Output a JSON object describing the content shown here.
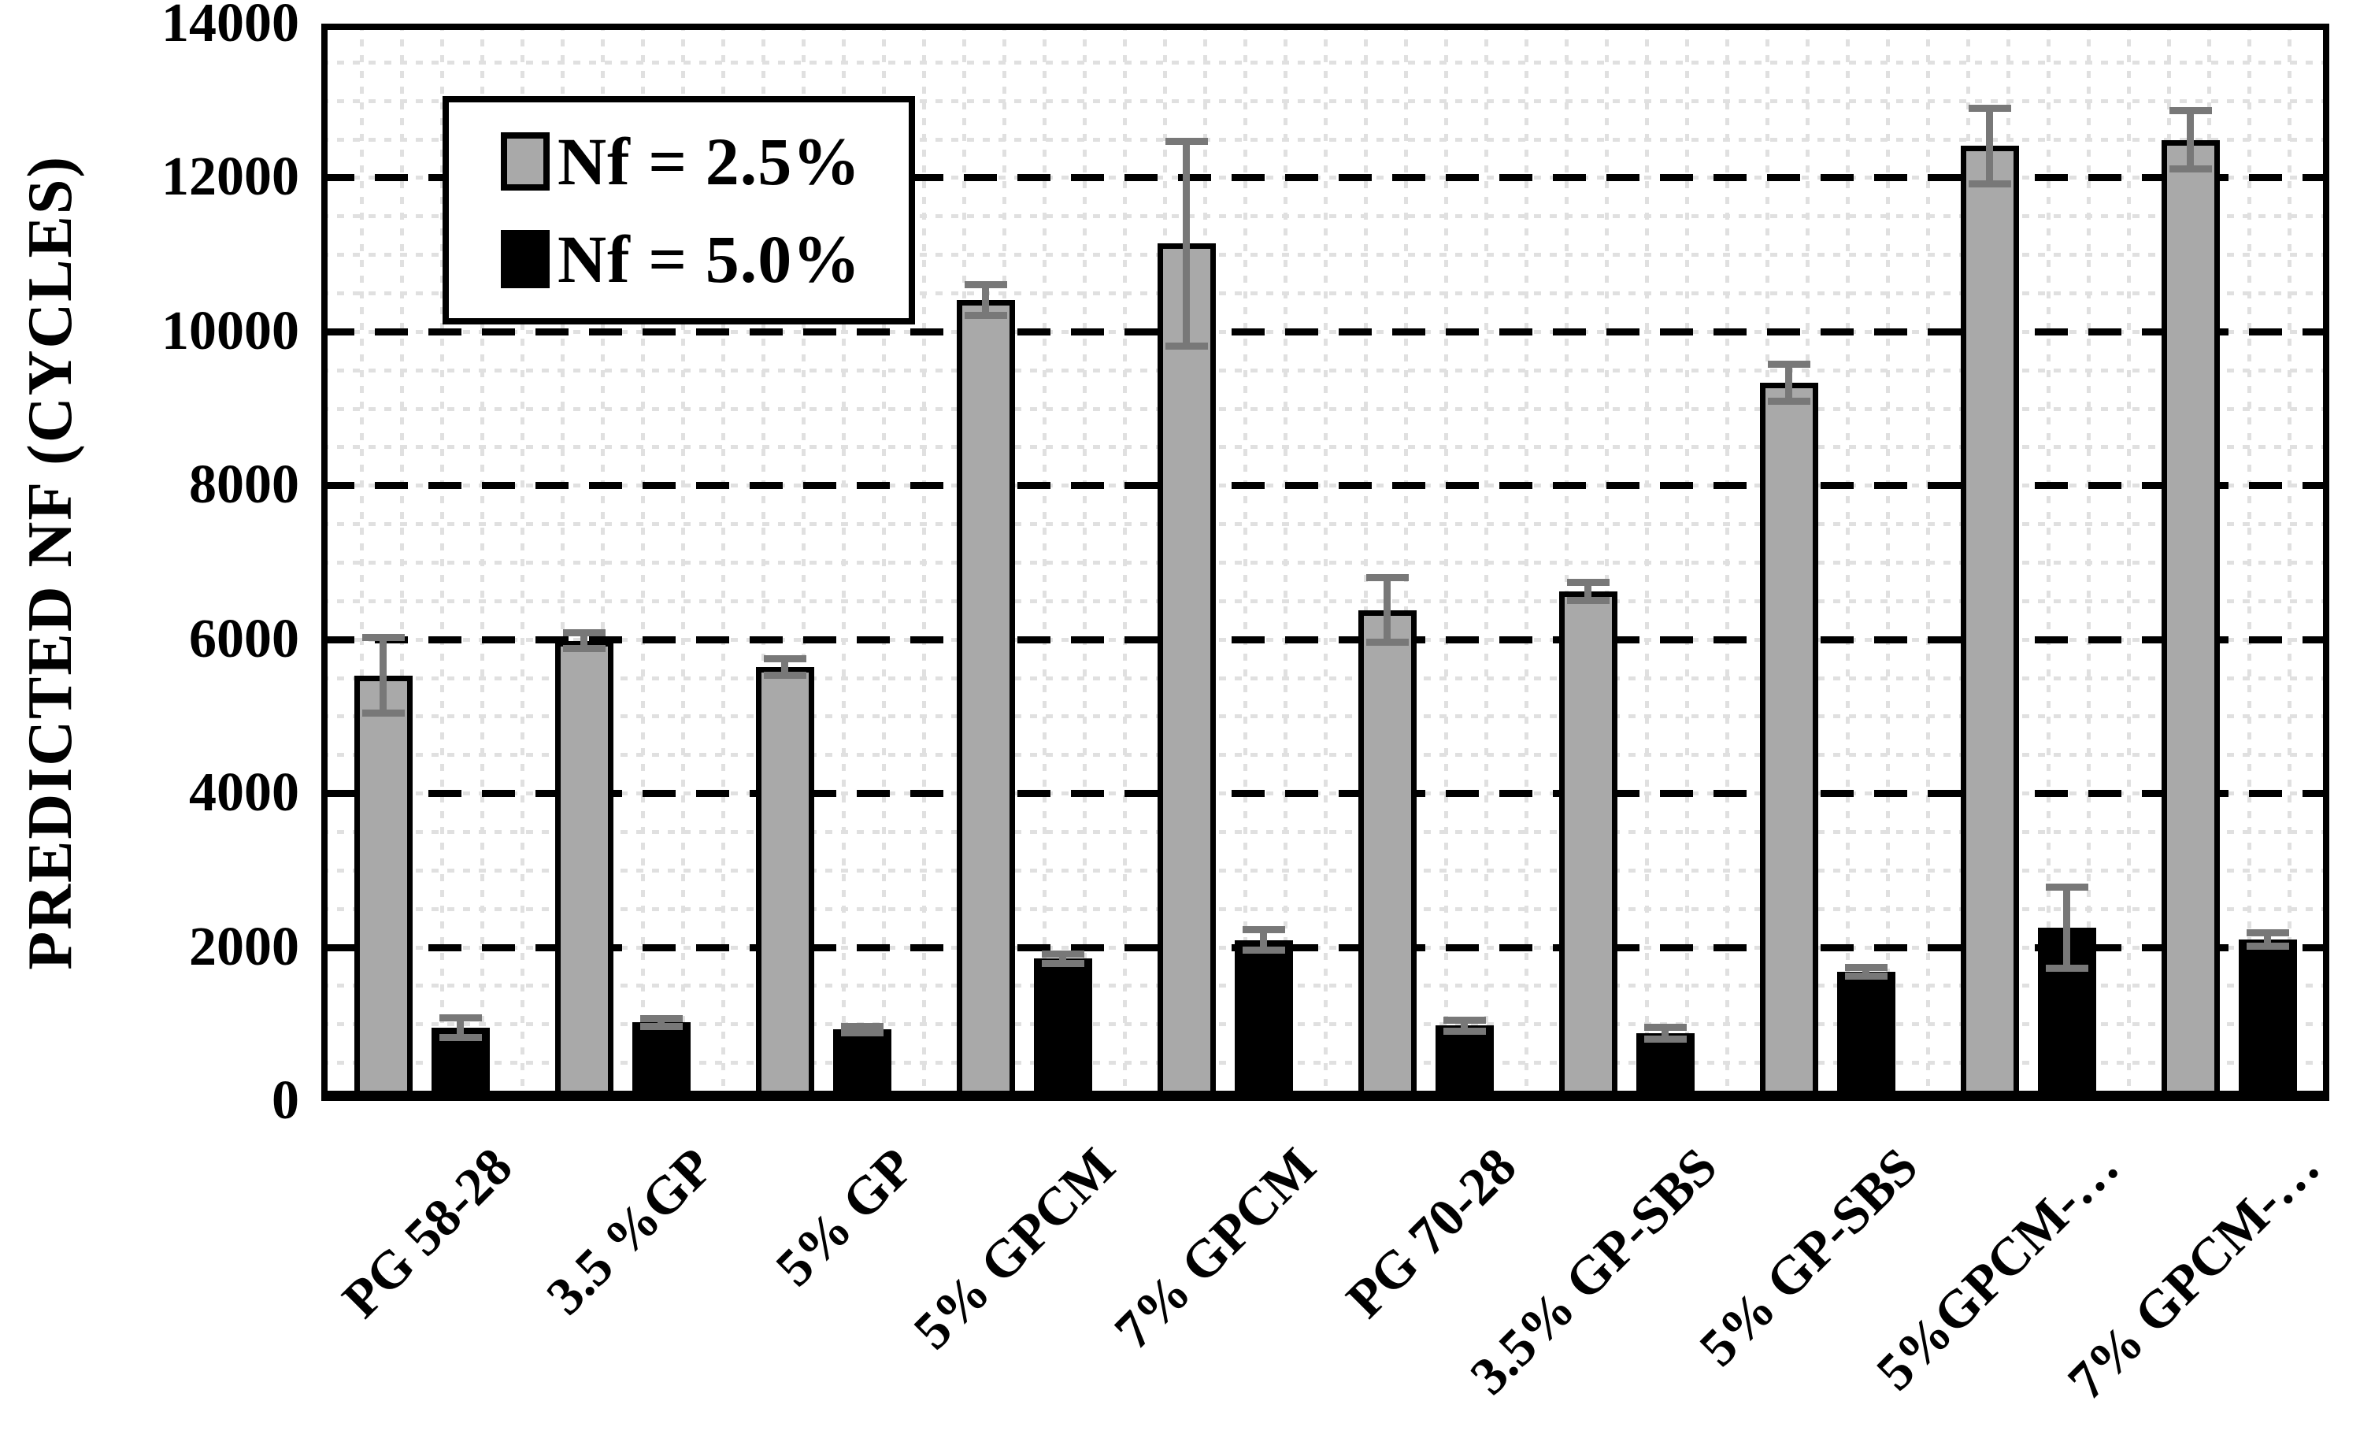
{
  "page": {
    "background": "#ffffff"
  },
  "chart_data": {
    "type": "bar",
    "title": "",
    "xlabel": "",
    "ylabel": "PREDICTED NF (CYCLES)",
    "ylim": [
      0,
      14000
    ],
    "y_major_step": 2000,
    "y_minor_step": 500,
    "y_tick_labels": [
      "0",
      "2000",
      "4000",
      "6000",
      "8000",
      "10000",
      "12000",
      "14000"
    ],
    "categories": [
      "PG 58-28",
      "3.5 %GP",
      "5% GP",
      "5% GPCM",
      "7% GPCM",
      "PG 70-28",
      "3.5% GP-SBS",
      "5% GP-SBS",
      "5%GPCM-…",
      "7% GPCM-…"
    ],
    "series": [
      {
        "name": "Nf = 2.5%",
        "color": "#a9a9a9",
        "values": [
          5530,
          5980,
          5640,
          10410,
          11140,
          6380,
          6620,
          9330,
          12410,
          12490
        ],
        "errors": [
          490,
          100,
          110,
          200,
          1330,
          420,
          120,
          240,
          490,
          380
        ]
      },
      {
        "name": "Nf = 5.0%",
        "color": "#000000",
        "values": [
          950,
          1020,
          930,
          1850,
          2090,
          980,
          880,
          1680,
          2250,
          2100
        ],
        "errors": [
          130,
          50,
          40,
          60,
          135,
          70,
          80,
          55,
          530,
          90
        ]
      }
    ],
    "legend_position": "top-left-inside",
    "grid": {
      "major_horizontal": "dashed-black",
      "minor_horizontal": "dotted-light-gray",
      "minor_vertical": "dotted-light-gray"
    },
    "error_bar_color": "#787878",
    "minor_grid_color": "#e0e0e0"
  },
  "legend": {
    "items": [
      {
        "label": "Nf = 2.5%",
        "swatch": "#a9a9a9"
      },
      {
        "label": "Nf = 5.0%",
        "swatch": "#000000"
      }
    ]
  }
}
